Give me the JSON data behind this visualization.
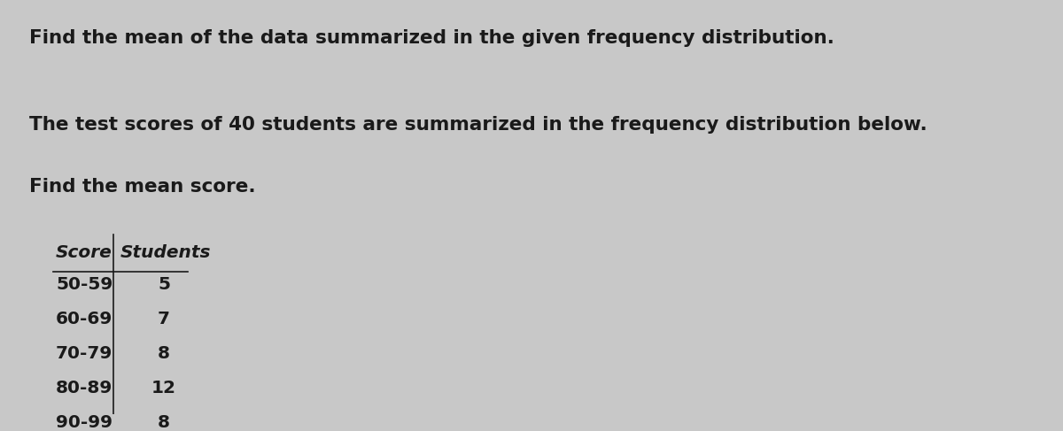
{
  "title_line": "Find the mean of the data summarized in the given frequency distribution.",
  "body_line1": "The test scores of 40 students are summarized in the frequency distribution below.",
  "body_line2": "Find the mean score.",
  "col_headers": [
    "Score",
    "Students"
  ],
  "rows": [
    [
      "50-59",
      "5"
    ],
    [
      "60-69",
      "7"
    ],
    [
      "70-79",
      "8"
    ],
    [
      "80-89",
      "12"
    ],
    [
      "90-99",
      "8"
    ]
  ],
  "bg_color": "#c8c8c8",
  "text_color": "#1a1a1a",
  "title_fontsize": 15.5,
  "body_fontsize": 15.5,
  "table_fontsize": 14.5
}
